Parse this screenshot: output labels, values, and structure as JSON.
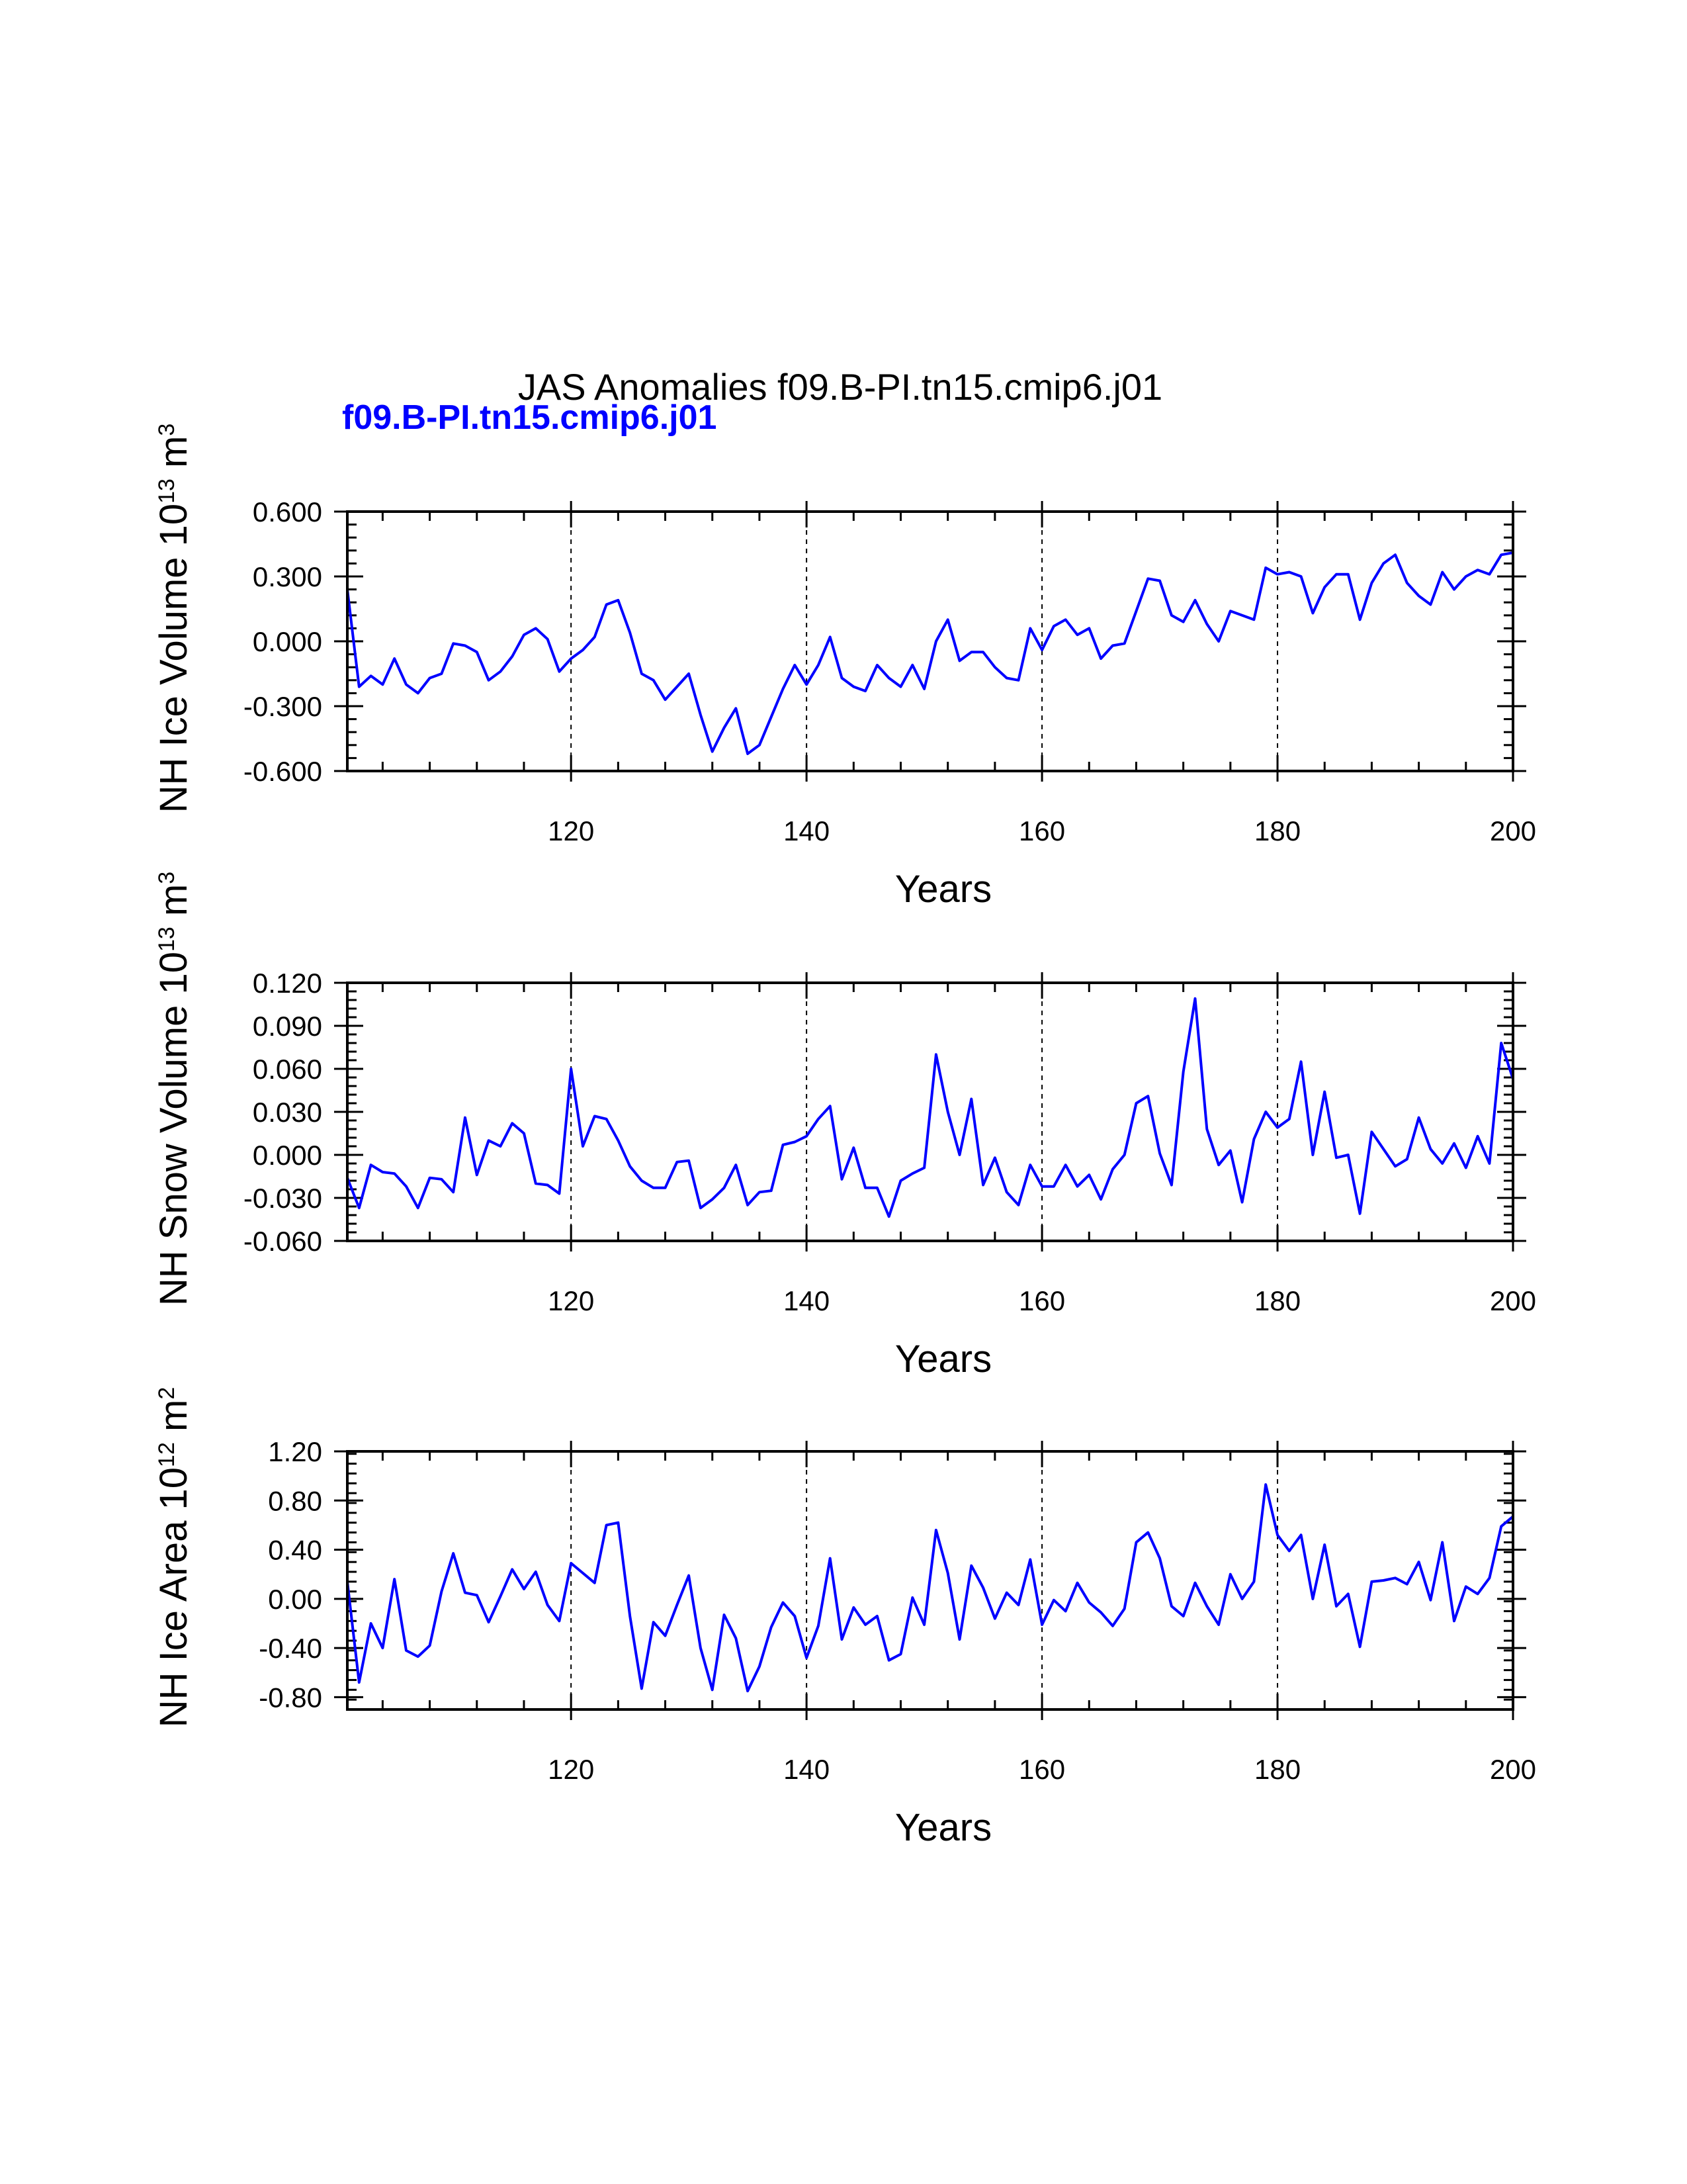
{
  "main_title": "JAS Anomalies f09.B-PI.tn15.cmip6.j01",
  "legend_label": "f09.B-PI.tn15.cmip6.j01",
  "colors": {
    "series": "#0000ff",
    "axes": "#000000",
    "legend": "#0000ff"
  },
  "chart_data": [
    {
      "type": "line",
      "ylabel": "NH Ice Volume 10",
      "ylabel_exp": "13",
      "ylabel_unit": " m",
      "ylabel_unit_exp": "3",
      "xlabel": "Years",
      "xlim": [
        101,
        200
      ],
      "ylim": [
        -0.6,
        0.6
      ],
      "yticks": [
        "-0.600",
        "-0.300",
        "0.000",
        "0.300",
        "0.600"
      ],
      "ytick_values": [
        -0.6,
        -0.3,
        0.0,
        0.3,
        0.6
      ],
      "xticks": [
        "120",
        "140",
        "160",
        "180",
        "200"
      ],
      "xtick_values": [
        120,
        140,
        160,
        180,
        200
      ],
      "grid_x": true,
      "series": [
        {
          "x_start": 101,
          "values": [
            0.24,
            -0.21,
            -0.16,
            -0.2,
            -0.08,
            -0.2,
            -0.24,
            -0.17,
            -0.15,
            -0.01,
            -0.02,
            -0.05,
            -0.18,
            -0.14,
            -0.07,
            0.03,
            0.06,
            0.01,
            -0.14,
            -0.08,
            -0.04,
            0.02,
            0.17,
            0.19,
            0.04,
            -0.15,
            -0.18,
            -0.27,
            -0.21,
            -0.15,
            -0.34,
            -0.51,
            -0.4,
            -0.31,
            -0.52,
            -0.48,
            -0.35,
            -0.22,
            -0.11,
            -0.2,
            -0.11,
            0.02,
            -0.17,
            -0.21,
            -0.23,
            -0.11,
            -0.17,
            -0.21,
            -0.11,
            -0.22,
            0.0,
            0.1,
            -0.09,
            -0.05,
            -0.05,
            -0.12,
            -0.17,
            -0.18,
            0.06,
            -0.04,
            0.07,
            0.1,
            0.03,
            0.06,
            -0.08,
            -0.02,
            -0.01,
            0.14,
            0.29,
            0.28,
            0.12,
            0.09,
            0.19,
            0.08,
            0.0,
            0.14,
            0.12,
            0.1,
            0.34,
            0.31,
            0.32,
            0.3,
            0.13,
            0.25,
            0.31,
            0.31,
            0.1,
            0.27,
            0.36,
            0.4,
            0.27,
            0.21,
            0.17,
            0.32,
            0.24,
            0.3,
            0.33,
            0.31,
            0.4,
            0.41
          ]
        }
      ]
    },
    {
      "type": "line",
      "ylabel": "NH Snow Volume 10",
      "ylabel_exp": "13",
      "ylabel_unit": " m",
      "ylabel_unit_exp": "3",
      "xlabel": "Years",
      "xlim": [
        101,
        200
      ],
      "ylim": [
        -0.06,
        0.12
      ],
      "yticks": [
        "-0.060",
        "-0.030",
        "0.000",
        "0.030",
        "0.060",
        "0.090",
        "0.120"
      ],
      "ytick_values": [
        -0.06,
        -0.03,
        0.0,
        0.03,
        0.06,
        0.09,
        0.12
      ],
      "xticks": [
        "120",
        "140",
        "160",
        "180",
        "200"
      ],
      "xtick_values": [
        120,
        140,
        160,
        180,
        200
      ],
      "grid_x": true,
      "series": [
        {
          "x_start": 101,
          "values": [
            -0.016,
            -0.037,
            -0.007,
            -0.012,
            -0.013,
            -0.022,
            -0.037,
            -0.016,
            -0.017,
            -0.026,
            0.026,
            -0.014,
            0.01,
            0.006,
            0.022,
            0.015,
            -0.02,
            -0.021,
            -0.027,
            0.06,
            0.006,
            0.027,
            0.025,
            0.01,
            -0.008,
            -0.018,
            -0.023,
            -0.023,
            -0.005,
            -0.004,
            -0.037,
            -0.031,
            -0.023,
            -0.007,
            -0.035,
            -0.026,
            -0.025,
            0.007,
            0.009,
            0.013,
            0.025,
            0.034,
            -0.017,
            0.005,
            -0.023,
            -0.023,
            -0.043,
            -0.018,
            -0.013,
            -0.009,
            0.07,
            0.03,
            0.0,
            0.039,
            -0.021,
            -0.002,
            -0.026,
            -0.035,
            -0.007,
            -0.022,
            -0.022,
            -0.007,
            -0.022,
            -0.014,
            -0.031,
            -0.01,
            0.0,
            0.036,
            0.041,
            0.001,
            -0.021,
            0.058,
            0.109,
            0.018,
            -0.007,
            0.003,
            -0.033,
            0.011,
            0.03,
            0.019,
            0.025,
            0.065,
            0.0,
            0.044,
            -0.002,
            0.0,
            -0.041,
            0.016,
            0.004,
            -0.008,
            -0.003,
            0.026,
            0.004,
            -0.006,
            0.008,
            -0.009,
            0.013,
            -0.006,
            0.078,
            0.053
          ]
        }
      ]
    },
    {
      "type": "line",
      "ylabel": "NH Ice Area 10",
      "ylabel_exp": "12",
      "ylabel_unit": " m",
      "ylabel_unit_exp": "2",
      "xlabel": "Years",
      "xlim": [
        101,
        200
      ],
      "ylim": [
        -0.9,
        1.2
      ],
      "yticks": [
        "-0.80",
        "-0.40",
        "0.00",
        "0.40",
        "0.80",
        "1.20"
      ],
      "ytick_values": [
        -0.8,
        -0.4,
        0.0,
        0.4,
        0.8,
        1.2
      ],
      "xticks": [
        "120",
        "140",
        "160",
        "180",
        "200"
      ],
      "xtick_values": [
        120,
        140,
        160,
        180,
        200
      ],
      "grid_x": true,
      "series": [
        {
          "x_start": 101,
          "values": [
            0.14,
            -0.68,
            -0.2,
            -0.4,
            0.16,
            -0.42,
            -0.47,
            -0.38,
            0.06,
            0.37,
            0.05,
            0.03,
            -0.19,
            0.02,
            0.24,
            0.08,
            0.22,
            -0.05,
            -0.18,
            0.29,
            0.21,
            0.13,
            0.6,
            0.62,
            -0.14,
            -0.73,
            -0.19,
            -0.3,
            -0.05,
            0.19,
            -0.4,
            -0.74,
            -0.13,
            -0.32,
            -0.75,
            -0.55,
            -0.23,
            -0.03,
            -0.14,
            -0.48,
            -0.22,
            0.33,
            -0.33,
            -0.07,
            -0.21,
            -0.14,
            -0.5,
            -0.45,
            0.01,
            -0.21,
            0.56,
            0.21,
            -0.33,
            0.27,
            0.09,
            -0.16,
            0.05,
            -0.05,
            0.32,
            -0.21,
            -0.01,
            -0.1,
            0.13,
            -0.03,
            -0.11,
            -0.22,
            -0.08,
            0.46,
            0.54,
            0.33,
            -0.06,
            -0.14,
            0.13,
            -0.06,
            -0.21,
            0.2,
            0.0,
            0.14,
            0.93,
            0.52,
            0.39,
            0.52,
            0.0,
            0.44,
            -0.06,
            0.04,
            -0.39,
            0.14,
            0.15,
            0.17,
            0.12,
            0.3,
            -0.01,
            0.46,
            -0.18,
            0.1,
            0.04,
            0.17,
            0.59,
            0.67
          ]
        }
      ]
    }
  ]
}
